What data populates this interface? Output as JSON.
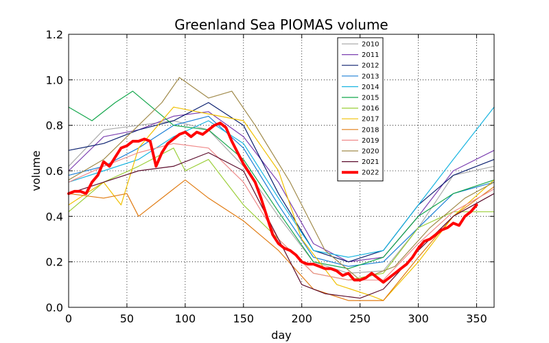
{
  "chart_data": {
    "type": "line",
    "title": "Greenland Sea PIOMAS volume",
    "xlabel": "day",
    "ylabel": "volume",
    "xlim": [
      0,
      365
    ],
    "ylim": [
      0,
      1.2
    ],
    "xticks": [
      "0",
      "50",
      "100",
      "150",
      "200",
      "250",
      "300",
      "350"
    ],
    "yticks": [
      "0.0",
      "0.2",
      "0.4",
      "0.6",
      "0.8",
      "1.0",
      "1.2"
    ],
    "grid": true,
    "legend_position": "top-right",
    "series": [
      {
        "name": "2010",
        "color": "#aaaaaa",
        "x": [
          0,
          30,
          60,
          90,
          120,
          150,
          180,
          210,
          240,
          270,
          300,
          330,
          365
        ],
        "y": [
          0.62,
          0.78,
          0.8,
          0.82,
          0.78,
          0.62,
          0.4,
          0.2,
          0.15,
          0.16,
          0.35,
          0.58,
          0.62
        ]
      },
      {
        "name": "2011",
        "color": "#7b3fb0",
        "x": [
          0,
          30,
          60,
          90,
          120,
          150,
          180,
          210,
          240,
          270,
          300,
          330,
          365
        ],
        "y": [
          0.6,
          0.75,
          0.78,
          0.84,
          0.86,
          0.75,
          0.55,
          0.28,
          0.2,
          0.22,
          0.4,
          0.6,
          0.69
        ]
      },
      {
        "name": "2012",
        "color": "#0a1f6f",
        "x": [
          0,
          30,
          60,
          90,
          120,
          150,
          180,
          210,
          240,
          270,
          300,
          330,
          365
        ],
        "y": [
          0.69,
          0.72,
          0.78,
          0.82,
          0.9,
          0.8,
          0.5,
          0.25,
          0.2,
          0.25,
          0.45,
          0.58,
          0.65
        ]
      },
      {
        "name": "2013",
        "color": "#1b7fd6",
        "x": [
          0,
          30,
          60,
          90,
          120,
          150,
          180,
          210,
          240,
          270,
          300,
          330,
          365
        ],
        "y": [
          0.58,
          0.62,
          0.7,
          0.8,
          0.84,
          0.7,
          0.45,
          0.22,
          0.18,
          0.2,
          0.35,
          0.5,
          0.55
        ]
      },
      {
        "name": "2014",
        "color": "#17b4e0",
        "x": [
          0,
          30,
          60,
          90,
          120,
          150,
          180,
          210,
          240,
          270,
          300,
          330,
          365
        ],
        "y": [
          0.55,
          0.6,
          0.65,
          0.75,
          0.82,
          0.72,
          0.48,
          0.25,
          0.22,
          0.25,
          0.45,
          0.65,
          0.88
        ]
      },
      {
        "name": "2015",
        "color": "#12a64b",
        "x": [
          0,
          20,
          40,
          55,
          90,
          120,
          150,
          180,
          210,
          240,
          270,
          300,
          330,
          365
        ],
        "y": [
          0.88,
          0.82,
          0.9,
          0.95,
          0.8,
          0.78,
          0.65,
          0.42,
          0.2,
          0.17,
          0.22,
          0.4,
          0.5,
          0.56
        ]
      },
      {
        "name": "2016",
        "color": "#9ccf3a",
        "x": [
          0,
          30,
          60,
          90,
          100,
          120,
          150,
          180,
          210,
          240,
          270,
          300,
          330,
          365
        ],
        "y": [
          0.42,
          0.55,
          0.62,
          0.7,
          0.6,
          0.65,
          0.45,
          0.3,
          0.15,
          0.12,
          0.15,
          0.35,
          0.42,
          0.42
        ]
      },
      {
        "name": "2017",
        "color": "#f0c000",
        "x": [
          0,
          30,
          45,
          60,
          90,
          120,
          150,
          180,
          200,
          230,
          260,
          270,
          300,
          330,
          365
        ],
        "y": [
          0.45,
          0.55,
          0.45,
          0.7,
          0.88,
          0.85,
          0.82,
          0.6,
          0.3,
          0.1,
          0.05,
          0.03,
          0.2,
          0.4,
          0.56
        ]
      },
      {
        "name": "2018",
        "color": "#e07a10",
        "x": [
          0,
          30,
          50,
          60,
          90,
          100,
          120,
          150,
          180,
          210,
          240,
          270,
          300,
          330,
          365
        ],
        "y": [
          0.5,
          0.48,
          0.5,
          0.4,
          0.52,
          0.56,
          0.48,
          0.38,
          0.25,
          0.08,
          0.03,
          0.03,
          0.22,
          0.4,
          0.53
        ]
      },
      {
        "name": "2019",
        "color": "#f08a8a",
        "x": [
          0,
          30,
          60,
          90,
          120,
          150,
          180,
          210,
          240,
          270,
          300,
          330,
          365
        ],
        "y": [
          0.55,
          0.62,
          0.68,
          0.72,
          0.7,
          0.55,
          0.3,
          0.15,
          0.12,
          0.12,
          0.28,
          0.42,
          0.52
        ]
      },
      {
        "name": "2020",
        "color": "#a08a4a",
        "x": [
          0,
          30,
          60,
          80,
          95,
          120,
          140,
          160,
          190,
          220,
          250,
          280,
          310,
          340,
          365
        ],
        "y": [
          0.56,
          0.65,
          0.8,
          0.9,
          1.01,
          0.92,
          0.95,
          0.8,
          0.55,
          0.25,
          0.12,
          0.18,
          0.35,
          0.48,
          0.55
        ]
      },
      {
        "name": "2021",
        "color": "#5a0a2a",
        "x": [
          0,
          30,
          60,
          90,
          120,
          150,
          180,
          200,
          220,
          250,
          270,
          300,
          330,
          365
        ],
        "y": [
          0.5,
          0.55,
          0.6,
          0.62,
          0.68,
          0.6,
          0.3,
          0.1,
          0.06,
          0.04,
          0.08,
          0.25,
          0.4,
          0.5
        ]
      },
      {
        "name": "2022",
        "color": "#ff0000",
        "x": [
          0,
          5,
          10,
          15,
          20,
          25,
          30,
          35,
          40,
          45,
          50,
          55,
          60,
          65,
          70,
          75,
          80,
          85,
          90,
          95,
          100,
          105,
          110,
          115,
          120,
          125,
          130,
          135,
          140,
          145,
          150,
          155,
          160,
          165,
          170,
          175,
          180,
          185,
          190,
          195,
          200,
          205,
          210,
          215,
          220,
          225,
          230,
          235,
          240,
          245,
          250,
          255,
          260,
          265,
          270,
          275,
          280,
          285,
          290,
          295,
          300,
          305,
          310,
          315,
          320,
          325,
          330,
          335,
          340,
          345,
          350
        ],
        "y": [
          0.5,
          0.51,
          0.51,
          0.5,
          0.55,
          0.58,
          0.64,
          0.62,
          0.66,
          0.7,
          0.71,
          0.73,
          0.73,
          0.74,
          0.73,
          0.62,
          0.68,
          0.72,
          0.74,
          0.76,
          0.77,
          0.75,
          0.77,
          0.76,
          0.78,
          0.8,
          0.81,
          0.79,
          0.73,
          0.68,
          0.63,
          0.59,
          0.55,
          0.48,
          0.4,
          0.32,
          0.28,
          0.26,
          0.25,
          0.23,
          0.2,
          0.19,
          0.19,
          0.18,
          0.17,
          0.17,
          0.16,
          0.14,
          0.15,
          0.12,
          0.12,
          0.13,
          0.15,
          0.13,
          0.11,
          0.13,
          0.15,
          0.17,
          0.19,
          0.22,
          0.26,
          0.29,
          0.3,
          0.32,
          0.34,
          0.35,
          0.37,
          0.36,
          0.4,
          0.42,
          0.45
        ]
      }
    ]
  }
}
